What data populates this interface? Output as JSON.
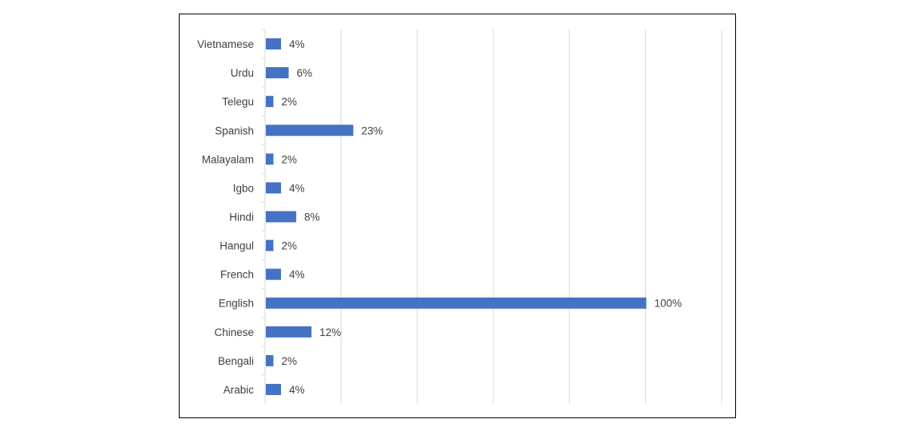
{
  "chart_data": {
    "type": "bar",
    "orientation": "horizontal",
    "title": "",
    "xlabel": "",
    "ylabel": "",
    "categories": [
      "Vietnamese",
      "Urdu",
      "Telegu",
      "Spanish",
      "Malayalam",
      "Igbo",
      "Hindi",
      "Hangul",
      "French",
      "English",
      "Chinese",
      "Bengali",
      "Arabic"
    ],
    "values": [
      4,
      6,
      2,
      23,
      2,
      4,
      8,
      2,
      4,
      100,
      12,
      2,
      4
    ],
    "data_labels": [
      "4%",
      "6%",
      "2%",
      "23%",
      "2%",
      "4%",
      "8%",
      "2%",
      "4%",
      "100%",
      "12%",
      "2%",
      "4%"
    ],
    "xlim": [
      0,
      120
    ],
    "x_gridline_step": 20,
    "x_tick_labels_shown": false,
    "grid": true,
    "legend": "none",
    "colors": {
      "bar": "#4472C4",
      "gridline": "#D9D9D9",
      "text": "#404040",
      "frame": "#000000"
    }
  }
}
